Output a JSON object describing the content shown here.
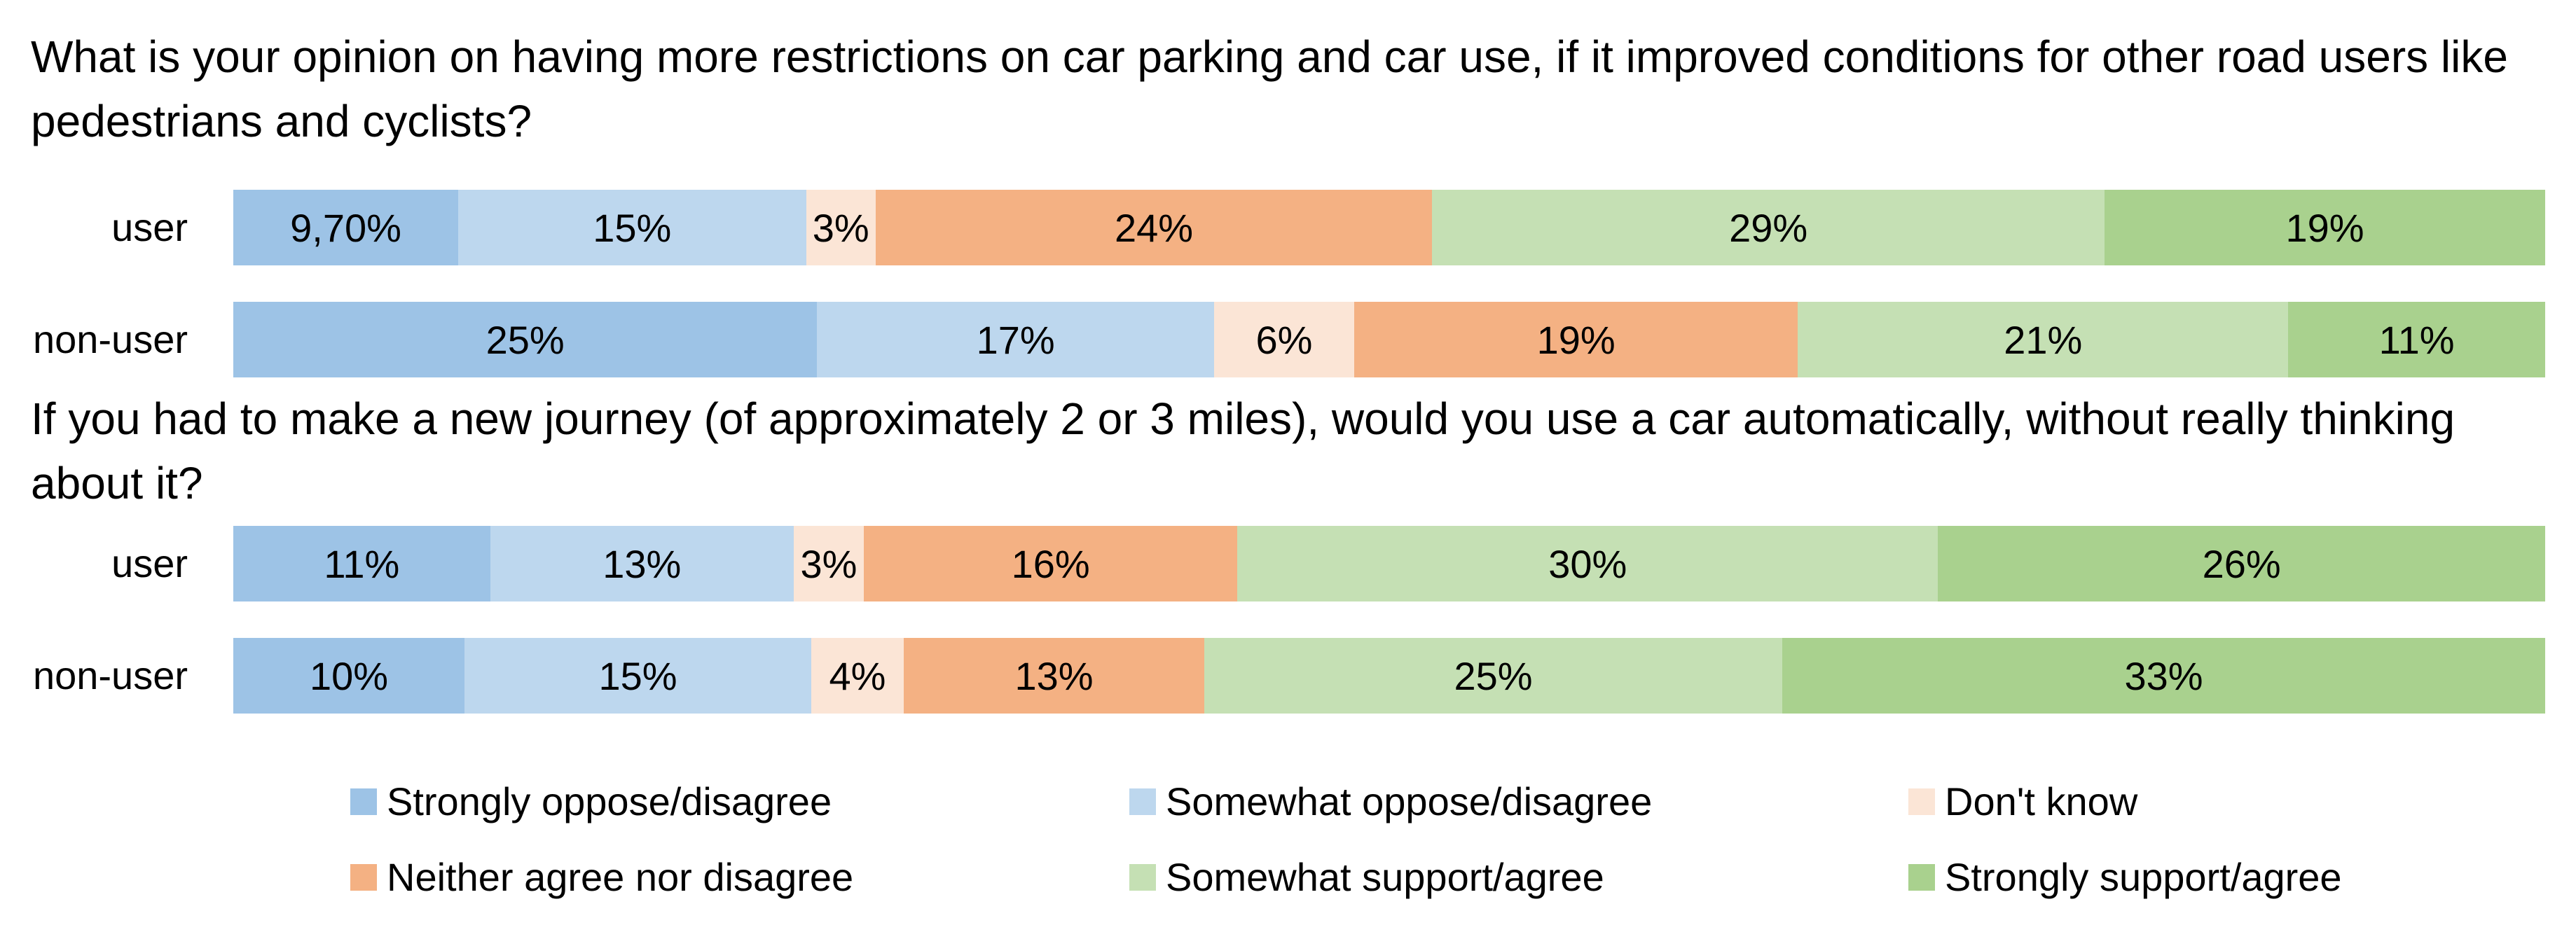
{
  "chart_data": {
    "type": "bar",
    "orientation": "horizontal",
    "stacked": true,
    "legend_position": "bottom",
    "grid": false,
    "categories_legend": [
      {
        "name": "Strongly oppose/disagree",
        "color": "#9dc3e6"
      },
      {
        "name": "Somewhat oppose/disagree",
        "color": "#bdd7ee"
      },
      {
        "name": "Don't know",
        "color": "#fbe5d6"
      },
      {
        "name": "Neither agree nor disagree",
        "color": "#f4b183"
      },
      {
        "name": "Somewhat support/agree",
        "color": "#c5e0b4"
      },
      {
        "name": "Strongly support/agree",
        "color": "#a9d18e"
      }
    ],
    "panels": [
      {
        "question": "What is your opinion on having more restrictions on car parking and car use, if it improved conditions for other road users like pedestrians and cyclists?",
        "rows": [
          {
            "label": "user",
            "values": [
              9.7,
              15,
              3,
              24,
              29,
              19
            ],
            "labels": [
              "9,70%",
              "15%",
              "3%",
              "24%",
              "29%",
              "19%"
            ]
          },
          {
            "label": "non-user",
            "values": [
              25,
              17,
              6,
              19,
              21,
              11
            ],
            "labels": [
              "25%",
              "17%",
              "6%",
              "19%",
              "21%",
              "11%"
            ]
          }
        ]
      },
      {
        "question": "If you had to make a new journey (of approximately 2 or 3 miles), would you use a car automatically, without really thinking about it?",
        "rows": [
          {
            "label": "user",
            "values": [
              11,
              13,
              3,
              16,
              30,
              26
            ],
            "labels": [
              "11%",
              "13%",
              "3%",
              "16%",
              "30%",
              "26%"
            ]
          },
          {
            "label": "non-user",
            "values": [
              10,
              15,
              4,
              13,
              25,
              33
            ],
            "labels": [
              "10%",
              "15%",
              "4%",
              "13%",
              "25%",
              "33%"
            ]
          }
        ]
      }
    ]
  }
}
